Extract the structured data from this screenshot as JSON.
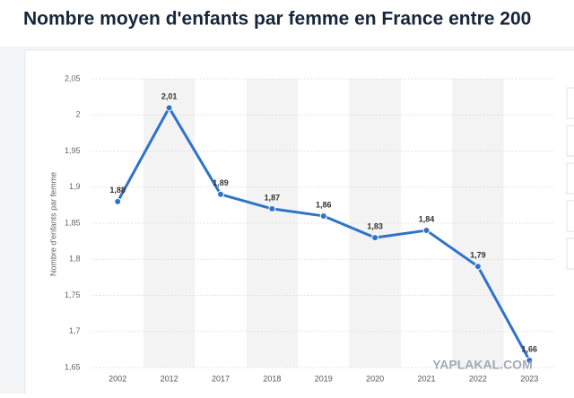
{
  "chart_data": {
    "type": "line",
    "title": "Nombre moyen d'enfants par femme en France entre 200",
    "y_label": "Nombre d'enfants par femme",
    "categories": [
      "2002",
      "2012",
      "2017",
      "2018",
      "2019",
      "2020",
      "2021",
      "2022",
      "2023"
    ],
    "series": [
      {
        "name": "Nombre d'enfants par femme",
        "color": "#2f73c8",
        "values": [
          1.88,
          2.01,
          1.89,
          1.87,
          1.86,
          1.83,
          1.84,
          1.79,
          1.66
        ],
        "value_labels": [
          "1,88",
          "2,01",
          "1,89",
          "1,87",
          "1,86",
          "1,83",
          "1,84",
          "1,79",
          "1,66"
        ]
      }
    ],
    "ylim": [
      1.65,
      2.05
    ],
    "yticks": [
      {
        "value": 1.65,
        "label": "1,65"
      },
      {
        "value": 1.7,
        "label": "1,7"
      },
      {
        "value": 1.75,
        "label": "1,75"
      },
      {
        "value": 1.8,
        "label": "1,8"
      },
      {
        "value": 1.85,
        "label": "1,85"
      },
      {
        "value": 1.9,
        "label": "1,9"
      },
      {
        "value": 1.95,
        "label": "1,95"
      },
      2,
      {
        "value": 2.05,
        "label": "2,05"
      }
    ],
    "grid": true,
    "watermark": "YAPLAKAL.COM"
  }
}
